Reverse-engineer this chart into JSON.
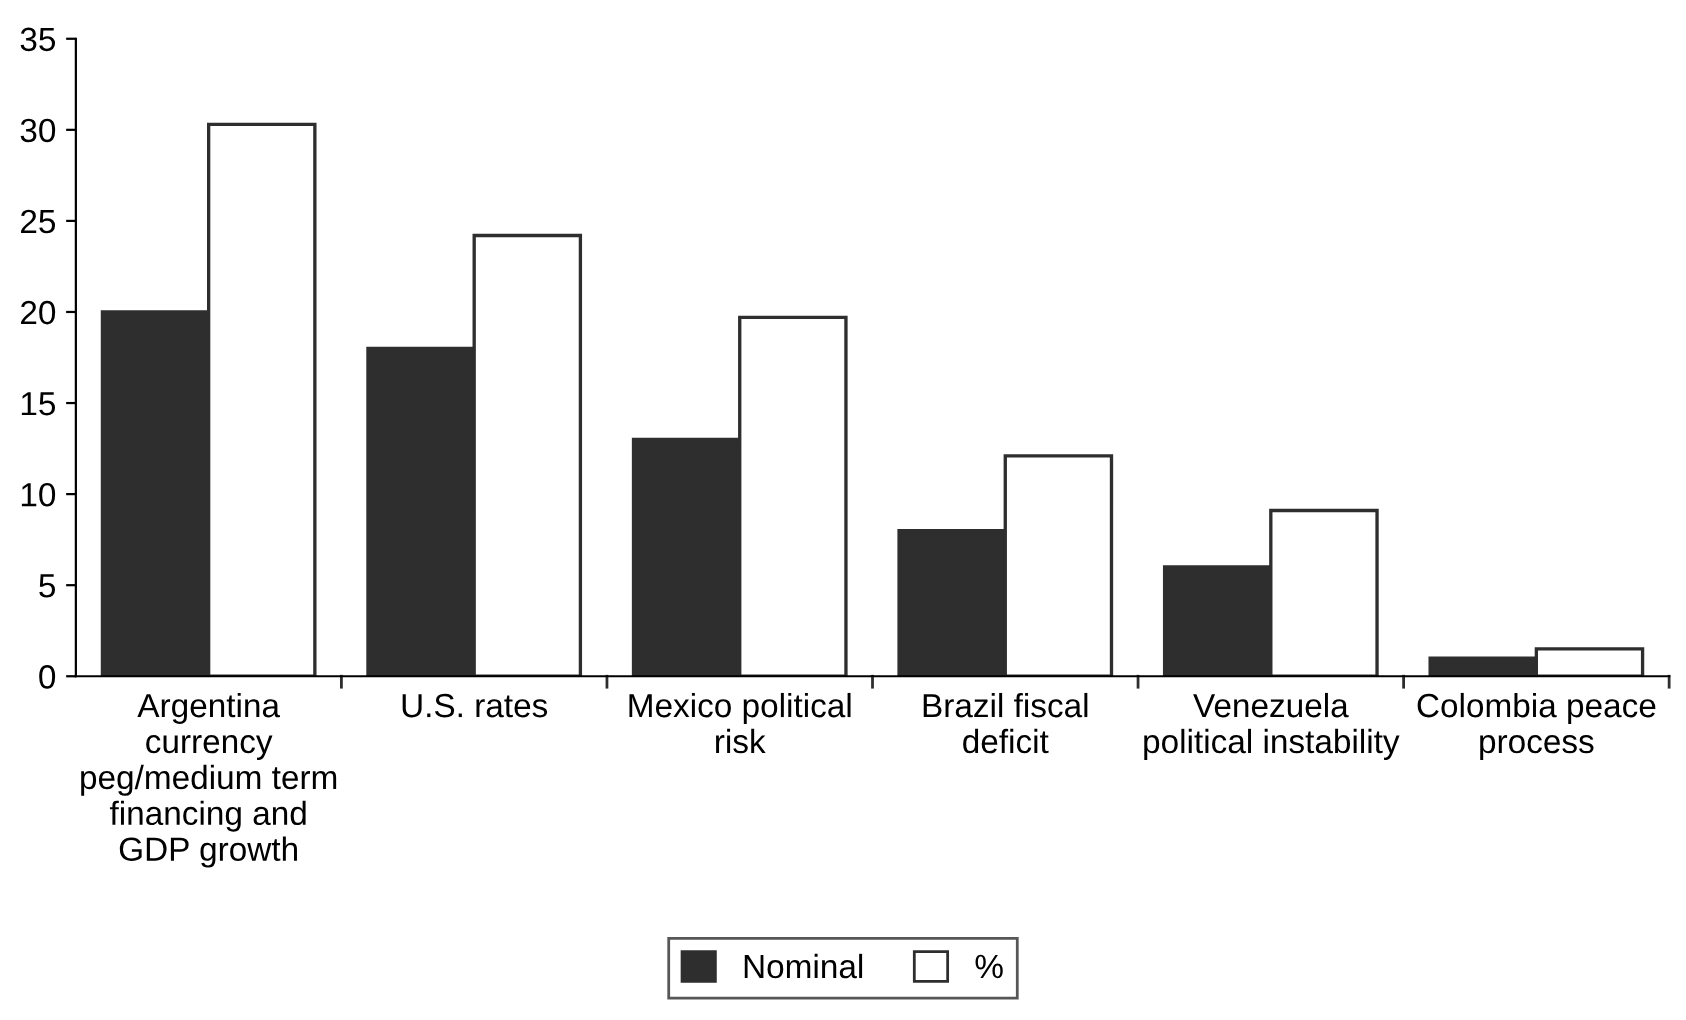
{
  "chart_data": {
    "type": "bar",
    "categories": [
      "Argentina\ncurrency\npeg/medium term\nfinancing and\nGDP growth",
      "U.S. rates",
      "Mexico political\nrisk",
      "Brazil fiscal\ndeficit",
      "Venezuela\npolitical instability",
      "Colombia peace\nprocess"
    ],
    "series": [
      {
        "name": "Nominal",
        "color": "#2e2e2e",
        "values": [
          20,
          18,
          13,
          8,
          6,
          1
        ]
      },
      {
        "name": "%",
        "color": "#ffffff",
        "values": [
          30.3,
          24.2,
          19.7,
          12.1,
          9.1,
          1.5
        ]
      }
    ],
    "ylim": [
      0,
      35
    ],
    "yticks": [
      0,
      5,
      10,
      15,
      20,
      25,
      30,
      35
    ],
    "grid": false,
    "legend": "bottom"
  }
}
